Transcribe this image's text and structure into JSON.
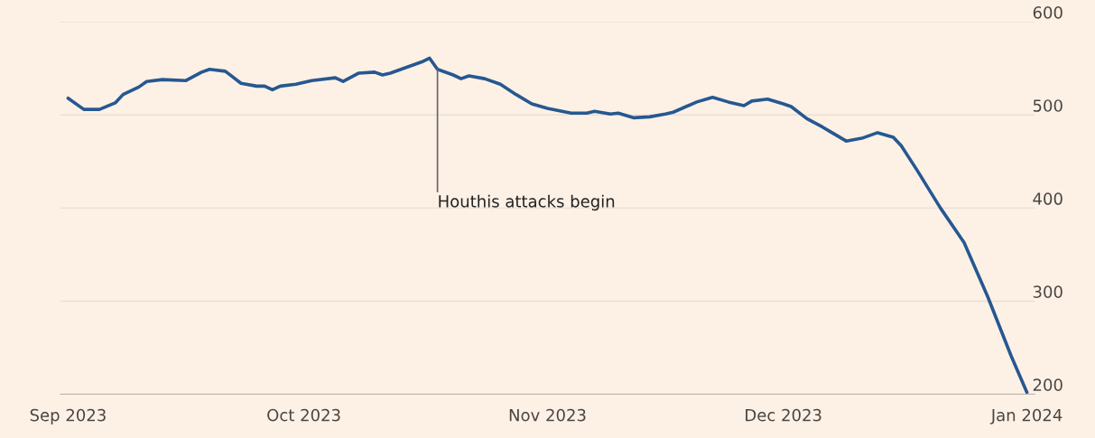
{
  "chart_data": {
    "type": "line",
    "x": [
      "2023-09-01",
      "2023-09-03",
      "2023-09-05",
      "2023-09-07",
      "2023-09-08",
      "2023-09-10",
      "2023-09-11",
      "2023-09-13",
      "2023-09-16",
      "2023-09-18",
      "2023-09-19",
      "2023-09-21",
      "2023-09-23",
      "2023-09-25",
      "2023-09-26",
      "2023-09-27",
      "2023-09-28",
      "2023-09-30",
      "2023-10-02",
      "2023-10-05",
      "2023-10-06",
      "2023-10-08",
      "2023-10-10",
      "2023-10-11",
      "2023-10-12",
      "2023-10-14",
      "2023-10-16",
      "2023-10-17",
      "2023-10-18",
      "2023-10-20",
      "2023-10-21",
      "2023-10-22",
      "2023-10-24",
      "2023-10-26",
      "2023-10-28",
      "2023-10-30",
      "2023-11-01",
      "2023-11-04",
      "2023-11-06",
      "2023-11-07",
      "2023-11-09",
      "2023-11-10",
      "2023-11-12",
      "2023-11-14",
      "2023-11-16",
      "2023-11-17",
      "2023-11-20",
      "2023-11-22",
      "2023-11-24",
      "2023-11-26",
      "2023-11-27",
      "2023-11-29",
      "2023-12-01",
      "2023-12-02",
      "2023-12-04",
      "2023-12-06",
      "2023-12-07",
      "2023-12-09",
      "2023-12-11",
      "2023-12-13",
      "2023-12-15",
      "2023-12-16",
      "2023-12-18",
      "2023-12-21",
      "2023-12-24",
      "2023-12-27",
      "2023-12-30",
      "2024-01-01"
    ],
    "series": [
      {
        "color": "#265891",
        "values": [
          518,
          506,
          506,
          513,
          522,
          530,
          536,
          538,
          537,
          546,
          549,
          547,
          534,
          531,
          531,
          527,
          531,
          533,
          537,
          540,
          536,
          545,
          546,
          543,
          545,
          551,
          557,
          561,
          549,
          543,
          539,
          542,
          539,
          533,
          522,
          512,
          507,
          502,
          502,
          504,
          501,
          502,
          497,
          498,
          501,
          503,
          514,
          519,
          514,
          510,
          515,
          517,
          512,
          509,
          496,
          487,
          482,
          472,
          475,
          481,
          476,
          467,
          441,
          400,
          363,
          305,
          241,
          202
        ]
      }
    ],
    "xlim": [
      "2023-08-31",
      "2024-01-02"
    ],
    "xticks": [
      {
        "value": "2023-09-01",
        "label": "Sep 2023"
      },
      {
        "value": "2023-10-01",
        "label": "Oct 2023"
      },
      {
        "value": "2023-11-01",
        "label": "Nov 2023"
      },
      {
        "value": "2023-12-01",
        "label": "Dec 2023"
      },
      {
        "value": "2024-01-01",
        "label": "Jan 2024"
      }
    ],
    "ylim": [
      200,
      600
    ],
    "yticks": [
      200,
      300,
      400,
      500,
      600
    ],
    "grid": "y",
    "line_style": "solid",
    "annotations": [
      {
        "text": "Houthis attacks begin",
        "x": "2023-10-18",
        "y": 549
      }
    ]
  }
}
